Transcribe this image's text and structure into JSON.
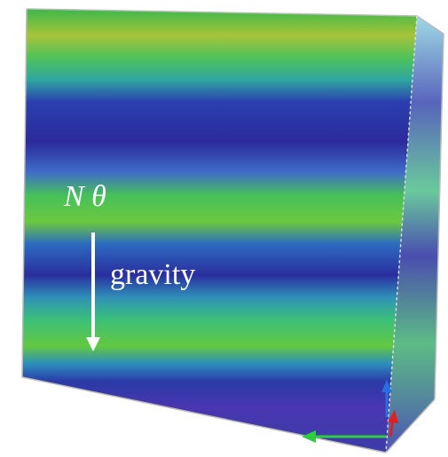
{
  "labels": {
    "field": "N θ",
    "direction": "gravity"
  }
}
